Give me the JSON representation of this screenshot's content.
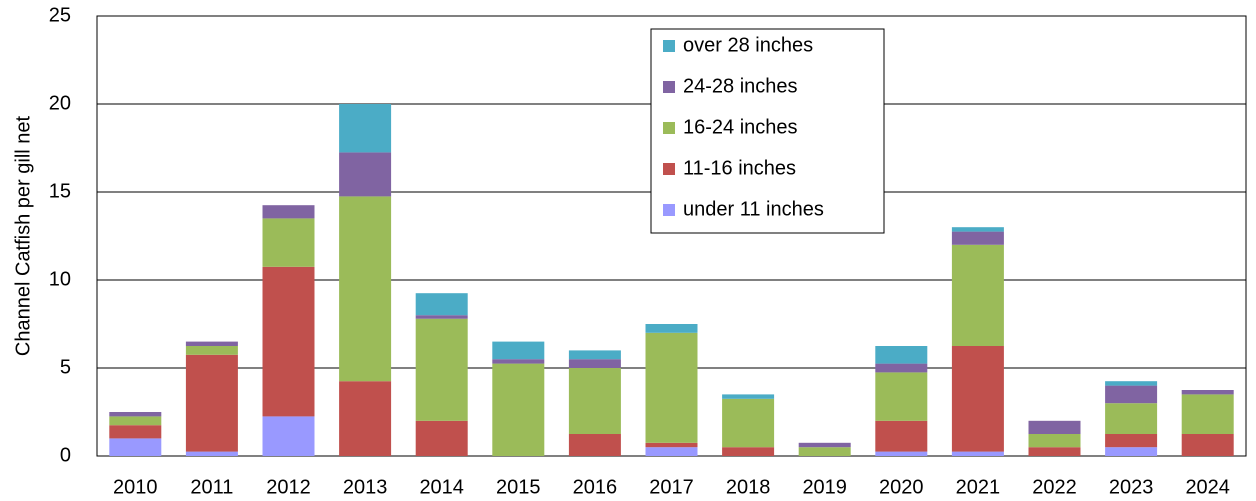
{
  "chart_data": {
    "type": "stacked-bar",
    "y_label": "Channel Catfish per gill net",
    "categories": [
      "2010",
      "2011",
      "2012",
      "2013",
      "2014",
      "2015",
      "2016",
      "2017",
      "2018",
      "2019",
      "2020",
      "2021",
      "2022",
      "2023",
      "2024"
    ],
    "series": [
      {
        "name": "under 11 inches",
        "color": "#9999ff",
        "values": [
          1.0,
          0.25,
          2.25,
          0,
          0,
          0,
          0,
          0.5,
          0,
          0,
          0.25,
          0.25,
          0,
          0.5,
          0
        ]
      },
      {
        "name": "11-16 inches",
        "color": "#c0504d",
        "values": [
          0.75,
          5.5,
          8.5,
          4.25,
          2.0,
          0,
          1.25,
          0.25,
          0.5,
          0,
          1.75,
          6.0,
          0.5,
          0.75,
          1.25
        ]
      },
      {
        "name": "16-24 inches",
        "color": "#9bbb59",
        "values": [
          0.5,
          0.5,
          2.75,
          10.5,
          5.8,
          5.25,
          3.75,
          6.25,
          2.75,
          0.5,
          2.75,
          5.75,
          0.75,
          1.75,
          2.25
        ]
      },
      {
        "name": "24-28 inches",
        "color": "#8064a2",
        "values": [
          0.25,
          0.25,
          0.75,
          2.5,
          0.2,
          0.25,
          0.5,
          0,
          0,
          0.25,
          0.5,
          0.75,
          0.75,
          1.0,
          0.25
        ]
      },
      {
        "name": "over 28 inches",
        "color": "#4bacc6",
        "values": [
          0,
          0,
          0,
          2.75,
          1.25,
          1.0,
          0.5,
          0.5,
          0.25,
          0,
          1.0,
          0.25,
          0,
          0.25,
          0
        ]
      }
    ],
    "ylim": [
      0,
      25
    ],
    "yticks": [
      0,
      5,
      10,
      15,
      20,
      25
    ],
    "grid": true
  }
}
